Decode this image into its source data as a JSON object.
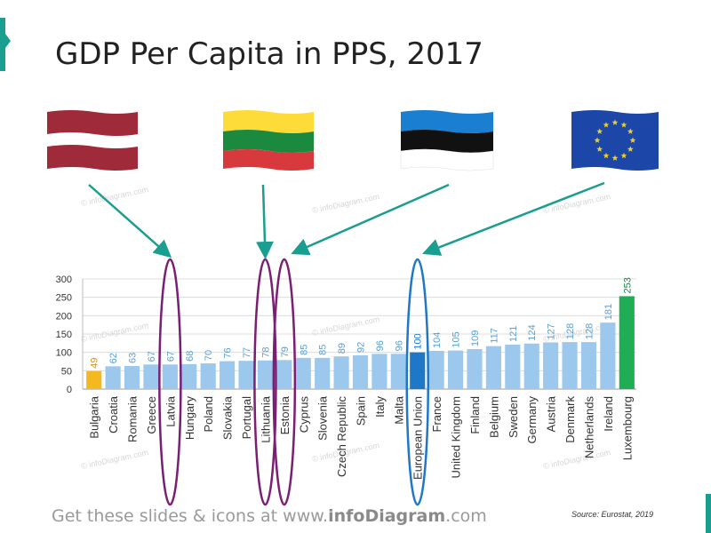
{
  "title": "GDP Per Capita in PPS, 2017",
  "footer": {
    "prefix": "Get these slides & icons at www.",
    "brand": "infoDiagram",
    "suffix": ".com"
  },
  "source": "Source: Eurostat, 2019",
  "watermark": "© infoDiagram.com",
  "flags": [
    {
      "name": "Latvia",
      "icon": "latvia-flag-icon"
    },
    {
      "name": "Lithuania",
      "icon": "lithuania-flag-icon"
    },
    {
      "name": "Estonia",
      "icon": "estonia-flag-icon"
    },
    {
      "name": "European Union",
      "icon": "eu-flag-icon"
    }
  ],
  "colors": {
    "default_bar": "#9bc8ec",
    "lowest_bar": "#f5b820",
    "eu_bar": "#1f77c8",
    "highest_bar": "#1fae55",
    "label_default": "#5a9fd4",
    "label_lowest": "#d9941a",
    "label_eu": "#1f77c8",
    "label_highest": "#158a44",
    "arrow": "#1a9e8f",
    "baltic_ellipse": "#7a1f74",
    "eu_ellipse": "#1f77c8"
  },
  "chart_data": {
    "type": "bar",
    "title": "",
    "xlabel": "",
    "ylabel": "",
    "ylim": [
      0,
      300
    ],
    "yticks": [
      0,
      50,
      100,
      150,
      200,
      250,
      300
    ],
    "grid": true,
    "categories": [
      "Bulgaria",
      "Croatia",
      "Romania",
      "Greece",
      "Latvia",
      "Hungary",
      "Poland",
      "Slovakia",
      "Portugal",
      "Lithuania",
      "Estonia",
      "Cyprus",
      "Slovenia",
      "Czech Republic",
      "Spain",
      "Italy",
      "Malta",
      "European Union",
      "France",
      "United Kingdom",
      "Finland",
      "Belgium",
      "Sweden",
      "Germany",
      "Austria",
      "Denmark",
      "Netherlands",
      "Ireland",
      "Luxembourg"
    ],
    "values": [
      49,
      62,
      63,
      67,
      67,
      68,
      70,
      76,
      77,
      78,
      79,
      85,
      85,
      89,
      92,
      96,
      96,
      100,
      104,
      105,
      109,
      117,
      121,
      124,
      127,
      128,
      128,
      181,
      253
    ],
    "highlighted": [
      "Latvia",
      "Lithuania",
      "Estonia",
      "European Union"
    ]
  }
}
